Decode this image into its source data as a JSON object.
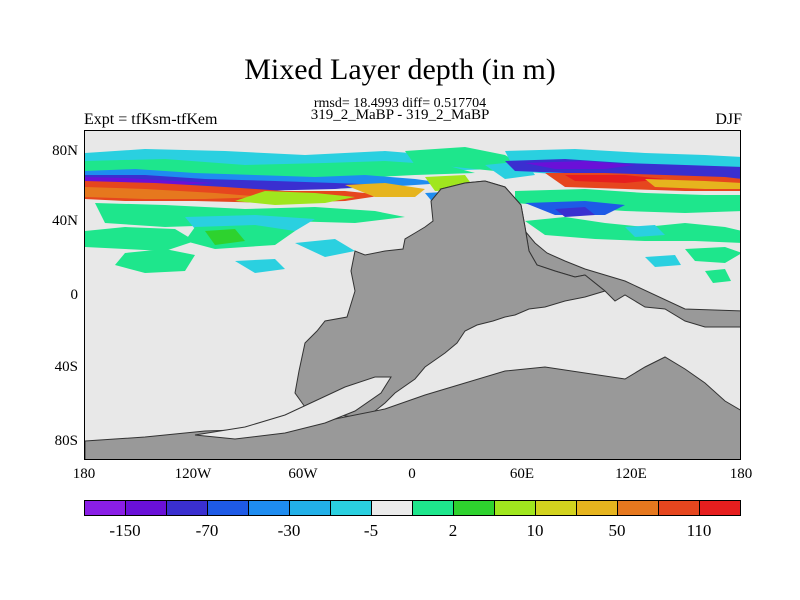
{
  "title": "Mixed Layer depth (in m)",
  "stats_line": "rmsd= 18.4993 diff= 0.517704",
  "case_line": "319_2_MaBP - 319_2_MaBP",
  "left_string": "Expt = tfKsm-tfKem",
  "right_string": "DJF",
  "lat_labels": [
    "80N",
    "40N",
    "0",
    "40S",
    "80S"
  ],
  "lon_labels": [
    "180",
    "120W",
    "60W",
    "0",
    "60E",
    "120E",
    "180"
  ],
  "colorbar": {
    "labels": [
      "-150",
      "-70",
      "-30",
      "-5",
      "2",
      "10",
      "50",
      "110"
    ],
    "colors": [
      "#8a1ee6",
      "#6a10d8",
      "#3a2fd0",
      "#1e5ae6",
      "#1e8cf0",
      "#22b0e8",
      "#2ad0e0",
      "#ebebeb",
      "#1ee68c",
      "#2ed22e",
      "#a0e61e",
      "#d2d21e",
      "#e6b41e",
      "#e6781e",
      "#e6461e",
      "#e61e1e"
    ]
  },
  "colors": {
    "ocean": "#e8e8e8",
    "land": "#999999"
  }
}
